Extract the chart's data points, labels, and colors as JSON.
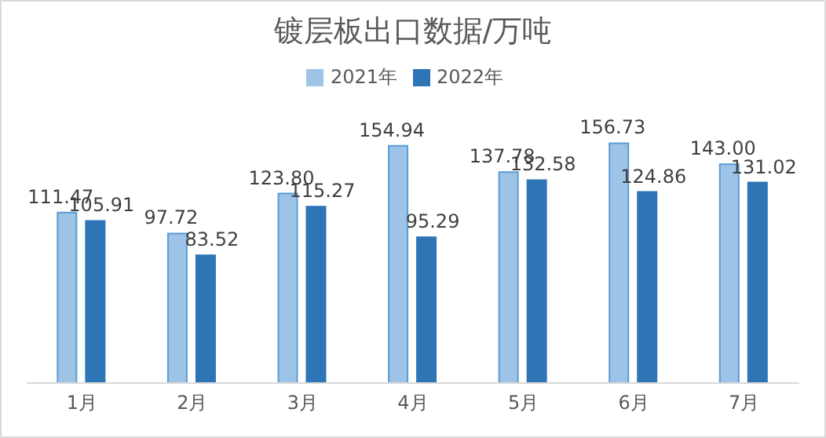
{
  "chart_data": {
    "type": "bar",
    "title": "镀层板出口数据/万吨",
    "categories": [
      "1月",
      "2月",
      "3月",
      "4月",
      "5月",
      "6月",
      "7月"
    ],
    "series": [
      {
        "name": "2021年",
        "color": "#9dc3e6",
        "values": [
          111.47,
          97.72,
          123.8,
          154.94,
          137.78,
          156.73,
          143.0
        ],
        "value_labels": [
          "111.47",
          "97.72",
          "123.80",
          "154.94",
          "137.78",
          "156.73",
          "143.00"
        ]
      },
      {
        "name": "2022年",
        "color": "#2e75b6",
        "values": [
          105.91,
          83.52,
          115.27,
          95.29,
          132.58,
          124.86,
          131.02
        ],
        "value_labels": [
          "105.91",
          "83.52",
          "115.27",
          "95.29",
          "132.58",
          "124.86",
          "131.02"
        ]
      }
    ],
    "legend": "top",
    "grid": false
  }
}
